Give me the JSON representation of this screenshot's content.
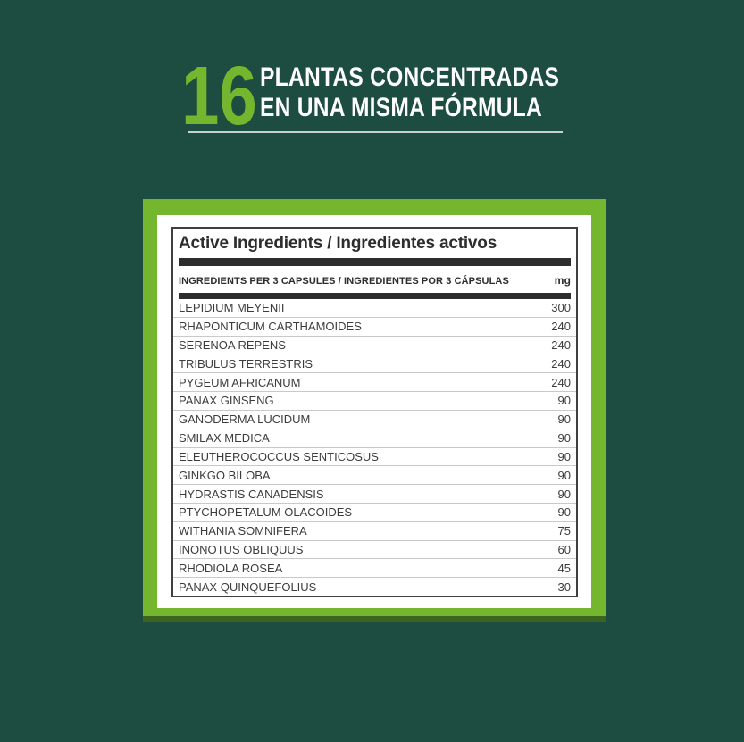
{
  "header": {
    "number": "16",
    "title_line1": "PLANTAS CONCENTRADAS",
    "title_line2": "EN UNA MISMA FÓRMULA"
  },
  "panel": {
    "title": "Active Ingredients / Ingredientes activos",
    "columns_label": "INGREDIENTS PER 3 CAPSULES / INGREDIENTES POR 3 CÁPSULAS",
    "unit": "mg",
    "ingredients": [
      {
        "name": "LEPIDIUM MEYENII",
        "mg": "300"
      },
      {
        "name": "RHAPONTICUM CARTHAMOIDES",
        "mg": "240"
      },
      {
        "name": "SERENOA REPENS",
        "mg": "240"
      },
      {
        "name": "TRIBULUS TERRESTRIS",
        "mg": "240"
      },
      {
        "name": "PYGEUM AFRICANUM",
        "mg": "240"
      },
      {
        "name": "PANAX GINSENG",
        "mg": "90"
      },
      {
        "name": "GANODERMA LUCIDUM",
        "mg": "90"
      },
      {
        "name": "SMILAX MEDICA",
        "mg": "90"
      },
      {
        "name": "ELEUTHEROCOCCUS SENTICOSUS",
        "mg": "90"
      },
      {
        "name": "GINKGO BILOBA",
        "mg": "90"
      },
      {
        "name": "HYDRASTIS CANADENSIS",
        "mg": "90"
      },
      {
        "name": "PTYCHOPETALUM OLACOIDES",
        "mg": "90"
      },
      {
        "name": "WITHANIA SOMNIFERA",
        "mg": "75"
      },
      {
        "name": "INONOTUS OBLIQUUS",
        "mg": "60"
      },
      {
        "name": "RHODIOLA ROSEA",
        "mg": "45"
      },
      {
        "name": "PANAX QUINQUEFOLIUS",
        "mg": "30"
      }
    ]
  },
  "colors": {
    "background": "#1d4c40",
    "accent_green": "#74b72e",
    "frame_shadow_green": "#3a6420",
    "bar_black": "#2d2d2d",
    "row_text": "#3c3c3c"
  }
}
